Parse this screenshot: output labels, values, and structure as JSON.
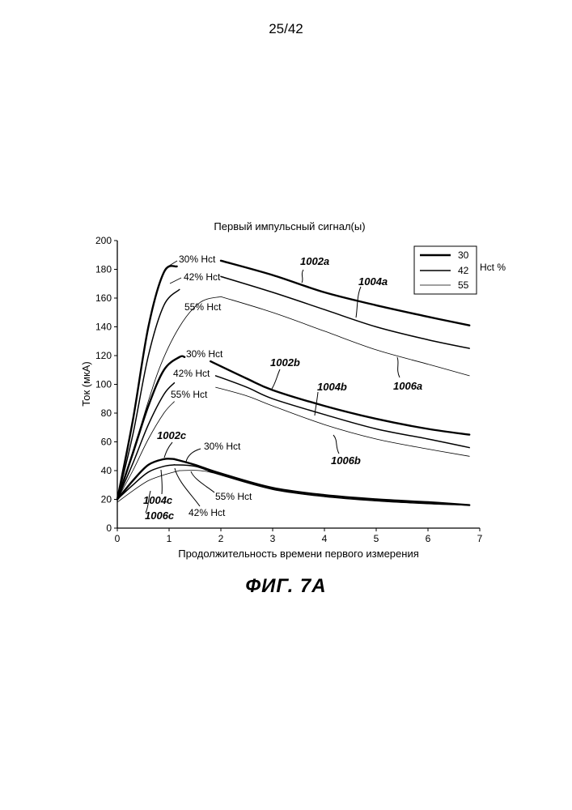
{
  "page": {
    "number": "25/42",
    "figure_caption": "ФИГ. 7А"
  },
  "chart_data": {
    "type": "line",
    "title": "Первый импульсный сигнал(ы)",
    "xlabel": "Продолжительность времени первого измерения",
    "ylabel": "Ток (мкА)",
    "xlim": [
      0,
      7
    ],
    "ylim": [
      0,
      200
    ],
    "xticks": [
      "0",
      "1",
      "2",
      "3",
      "4",
      "5",
      "6",
      "7"
    ],
    "yticks": [
      "0",
      "20",
      "40",
      "60",
      "80",
      "100",
      "120",
      "140",
      "160",
      "180",
      "200"
    ],
    "grid": false,
    "legend": {
      "placement": "top-right",
      "title": "Hct %",
      "entries": [
        {
          "label": "30",
          "line": "thick"
        },
        {
          "label": "42",
          "line": "medium"
        },
        {
          "label": "55",
          "line": "thin"
        }
      ]
    },
    "groups": [
      {
        "id": "a",
        "series": [
          {
            "hct": "30",
            "ref": "1002a",
            "rise": [
              [
                0,
                20
              ],
              [
                0.3,
                75
              ],
              [
                0.6,
                140
              ],
              [
                0.9,
                178
              ],
              [
                1.15,
                182
              ]
            ],
            "decay": [
              [
                2,
                186
              ],
              [
                3,
                176
              ],
              [
                4,
                164
              ],
              [
                5,
                155
              ],
              [
                6,
                147
              ],
              [
                6.8,
                141
              ]
            ]
          },
          {
            "hct": "42",
            "ref": "1004a",
            "rise": [
              [
                0,
                20
              ],
              [
                0.3,
                65
              ],
              [
                0.6,
                120
              ],
              [
                0.9,
                155
              ],
              [
                1.2,
                166
              ]
            ],
            "decay": [
              [
                2,
                175
              ],
              [
                3,
                164
              ],
              [
                4,
                152
              ],
              [
                5,
                140
              ],
              [
                6,
                131
              ],
              [
                6.8,
                125
              ]
            ]
          },
          {
            "hct": "55",
            "ref": "1006a",
            "rise": [
              [
                0,
                20
              ],
              [
                0.4,
                65
              ],
              [
                0.8,
                110
              ],
              [
                1.2,
                140
              ],
              [
                1.6,
                157
              ],
              [
                2,
                161
              ]
            ],
            "decay": [
              [
                2,
                161
              ],
              [
                3,
                150
              ],
              [
                4,
                137
              ],
              [
                5,
                124
              ],
              [
                6,
                114
              ],
              [
                6.8,
                106
              ]
            ]
          }
        ]
      },
      {
        "id": "b",
        "series": [
          {
            "hct": "30",
            "ref": "1002b",
            "rise": [
              [
                0,
                20
              ],
              [
                0.3,
                52
              ],
              [
                0.6,
                85
              ],
              [
                0.9,
                110
              ],
              [
                1.2,
                119
              ],
              [
                1.3,
                119
              ]
            ],
            "decay": [
              [
                1.8,
                116
              ],
              [
                2.5,
                104
              ],
              [
                3,
                96
              ],
              [
                4,
                85
              ],
              [
                5,
                76
              ],
              [
                6,
                69
              ],
              [
                6.8,
                65
              ]
            ]
          },
          {
            "hct": "42",
            "ref": "1004b",
            "rise": [
              [
                0,
                20
              ],
              [
                0.3,
                45
              ],
              [
                0.6,
                72
              ],
              [
                0.9,
                93
              ],
              [
                1.1,
                101
              ]
            ],
            "decay": [
              [
                1.9,
                106
              ],
              [
                2.5,
                98
              ],
              [
                3,
                90
              ],
              [
                4,
                79
              ],
              [
                5,
                69
              ],
              [
                6,
                62
              ],
              [
                6.8,
                56
              ]
            ]
          },
          {
            "hct": "55",
            "ref": "1006b",
            "rise": [
              [
                0,
                20
              ],
              [
                0.3,
                40
              ],
              [
                0.6,
                62
              ],
              [
                0.9,
                80
              ],
              [
                1.1,
                88
              ]
            ],
            "decay": [
              [
                1.9,
                98
              ],
              [
                2.5,
                92
              ],
              [
                3,
                85
              ],
              [
                4,
                72
              ],
              [
                5,
                62
              ],
              [
                6,
                55
              ],
              [
                6.8,
                50
              ]
            ]
          }
        ]
      },
      {
        "id": "c",
        "series": [
          {
            "hct": "30",
            "ref": "1002c",
            "rise": [
              [
                0,
                20
              ],
              [
                0.3,
                33
              ],
              [
                0.6,
                44
              ],
              [
                0.9,
                48
              ],
              [
                1.1,
                48
              ]
            ],
            "decay": [
              [
                1.1,
                48
              ],
              [
                1.5,
                44
              ],
              [
                2,
                38
              ],
              [
                3,
                28
              ],
              [
                4,
                23
              ],
              [
                5,
                20
              ],
              [
                6,
                18
              ],
              [
                6.8,
                16
              ]
            ]
          },
          {
            "hct": "42",
            "ref": "1004c",
            "rise": [
              [
                0,
                20
              ],
              [
                0.3,
                30
              ],
              [
                0.6,
                39
              ],
              [
                0.9,
                43
              ],
              [
                1.1,
                44
              ]
            ],
            "decay": [
              [
                1.1,
                44
              ],
              [
                1.5,
                43
              ],
              [
                2,
                37
              ],
              [
                3,
                27
              ],
              [
                4,
                22
              ],
              [
                5,
                19
              ],
              [
                6,
                17
              ],
              [
                6.8,
                16
              ]
            ]
          },
          {
            "hct": "55",
            "ref": "1006c",
            "rise": [
              [
                0,
                18
              ],
              [
                0.3,
                26
              ],
              [
                0.6,
                33
              ],
              [
                0.9,
                37
              ],
              [
                1.2,
                40
              ]
            ],
            "decay": [
              [
                1.2,
                40
              ],
              [
                1.6,
                40
              ],
              [
                2,
                37
              ],
              [
                3,
                27
              ],
              [
                4,
                22
              ],
              [
                5,
                19
              ],
              [
                6,
                17
              ],
              [
                6.8,
                16
              ]
            ]
          }
        ]
      }
    ],
    "annotations": {
      "a30": "30% Hct",
      "a42": "42% Hct",
      "a55": "55% Hct",
      "b30": "30% Hct",
      "b42": "42% Hct",
      "b55": "55% Hct",
      "c30": "30% Hct",
      "c42": "42% Hct",
      "c55": "55% Hct",
      "r1002a": "1002a",
      "r1004a": "1004a",
      "r1006a": "1006a",
      "r1002b": "1002b",
      "r1004b": "1004b",
      "r1006b": "1006b",
      "r1002c": "1002c",
      "r1004c": "1004c",
      "r1006c": "1006c"
    }
  }
}
